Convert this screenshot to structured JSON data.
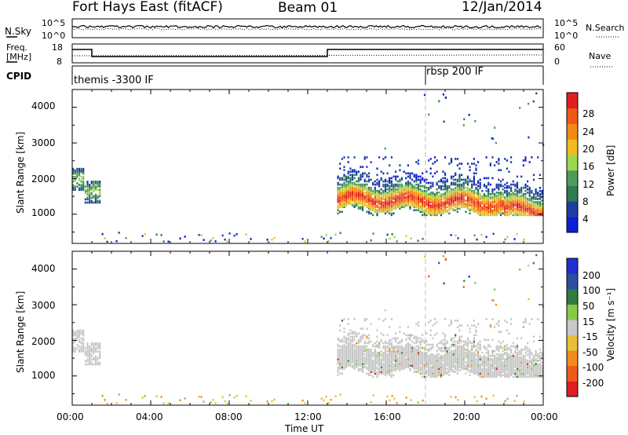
{
  "header": {
    "station": "Fort Hays East (fitACF)",
    "beam": "Beam 01",
    "date": "12/Jan/2014"
  },
  "top_panels": {
    "nsky_label": "N.Sky",
    "nsearch_label": "N.Search",
    "noise_ticks": [
      "10^5",
      "10^0"
    ],
    "freq_label_line1": "Freq.",
    "freq_label_line2": "[MHz]",
    "freq_ticks": [
      "18",
      "8"
    ],
    "nave_label": "Nave",
    "nave_ticks": [
      "60",
      "0"
    ],
    "cpid_label": "CPID",
    "cpid_segments": [
      "themis -3300 IF",
      "rbsp 200 IF"
    ]
  },
  "colors": {
    "power": [
      "#0b1fd6",
      "#1f3f9f",
      "#2e7a52",
      "#4f9c5a",
      "#9fd650",
      "#f2bb22",
      "#f28a14",
      "#ef5818",
      "#e0201f"
    ],
    "velocity": [
      "#1f2fd4",
      "#2c4fa0",
      "#2f7d40",
      "#86c94a",
      "#c8c8c8",
      "#e8bf3a",
      "#f08c1c",
      "#ee5a1a",
      "#dd1f1f"
    ]
  },
  "chart_data": [
    {
      "type": "heatmap",
      "panel": "power",
      "ylabel": "Slant Range [km]",
      "xlim": [
        "00:00",
        "00:00"
      ],
      "ylim": [
        180,
        4500
      ],
      "yticks": [
        1000,
        2000,
        3000,
        4000
      ],
      "xticks": [
        "00:00",
        "04:00",
        "08:00",
        "12:00",
        "16:00",
        "20:00",
        "00:00"
      ],
      "colorbar": {
        "label": "Power [dB]",
        "ticks": [
          "28",
          "24",
          "20",
          "16",
          "12",
          "8",
          "4"
        ]
      },
      "echo_regions": [
        {
          "start": "00:00",
          "end": "01:30",
          "range_km": [
            1300,
            2600
          ]
        },
        {
          "start": "13:30",
          "end": "24:00",
          "range_km": [
            1000,
            2600
          ],
          "peak_db": 30
        }
      ]
    },
    {
      "type": "heatmap",
      "panel": "velocity",
      "ylabel": "Slant Range [km]",
      "xlabel": "Time UT",
      "xlim": [
        "00:00",
        "00:00"
      ],
      "ylim": [
        180,
        4500
      ],
      "yticks": [
        1000,
        2000,
        3000,
        4000
      ],
      "xticks": [
        "00:00",
        "04:00",
        "08:00",
        "12:00",
        "16:00",
        "20:00",
        "00:00"
      ],
      "colorbar": {
        "label": "Velocity [m s⁻¹]",
        "ticks": [
          "200",
          "100",
          "50",
          "15",
          "-15",
          "-50",
          "-100",
          "-200"
        ]
      }
    }
  ]
}
